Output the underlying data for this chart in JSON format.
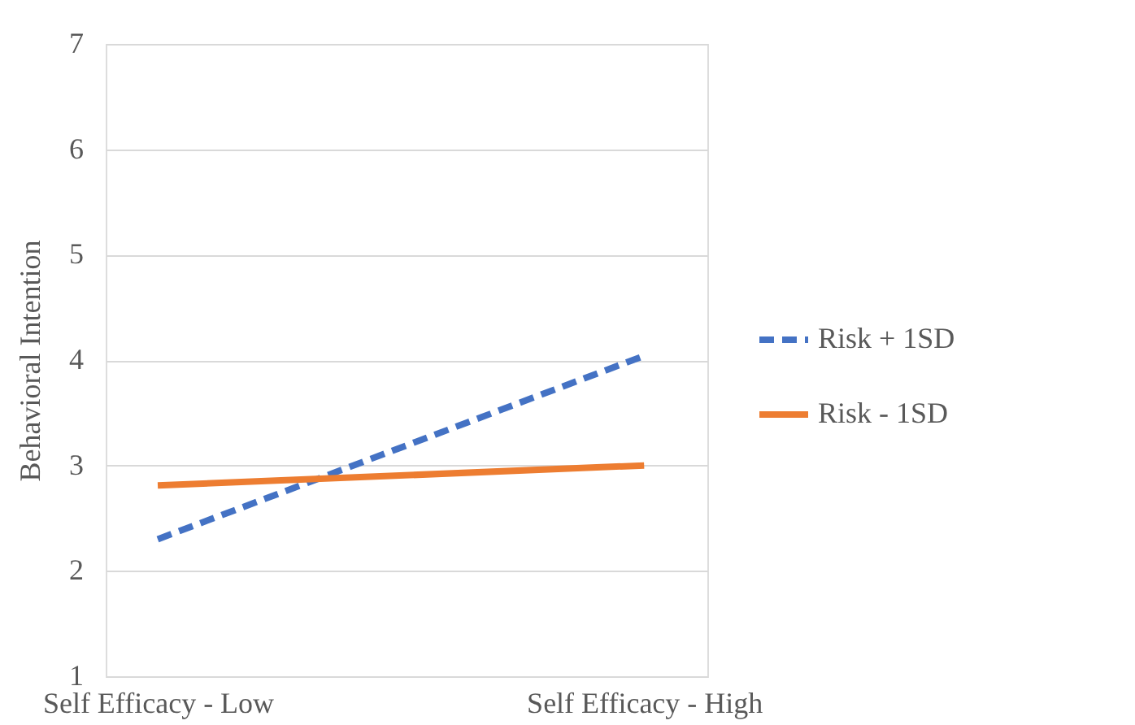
{
  "chart_data": {
    "type": "line",
    "ylabel": "Behavioral Intention",
    "categories": [
      "Self Efficacy - Low",
      "Self Efficacy - High"
    ],
    "series": [
      {
        "name": "Risk + 1SD",
        "color": "#4472c4",
        "values": [
          2.3,
          4.04
        ],
        "line_style": "dashed"
      },
      {
        "name": "Risk - 1SD",
        "color": "#ed7d31",
        "values": [
          2.81,
          3.0
        ],
        "line_style": "solid"
      }
    ],
    "ylim": [
      1,
      7
    ],
    "yticks": [
      1,
      2,
      3,
      4,
      5,
      6,
      7
    ],
    "grid": "y",
    "legend": "right",
    "marker": "none"
  }
}
